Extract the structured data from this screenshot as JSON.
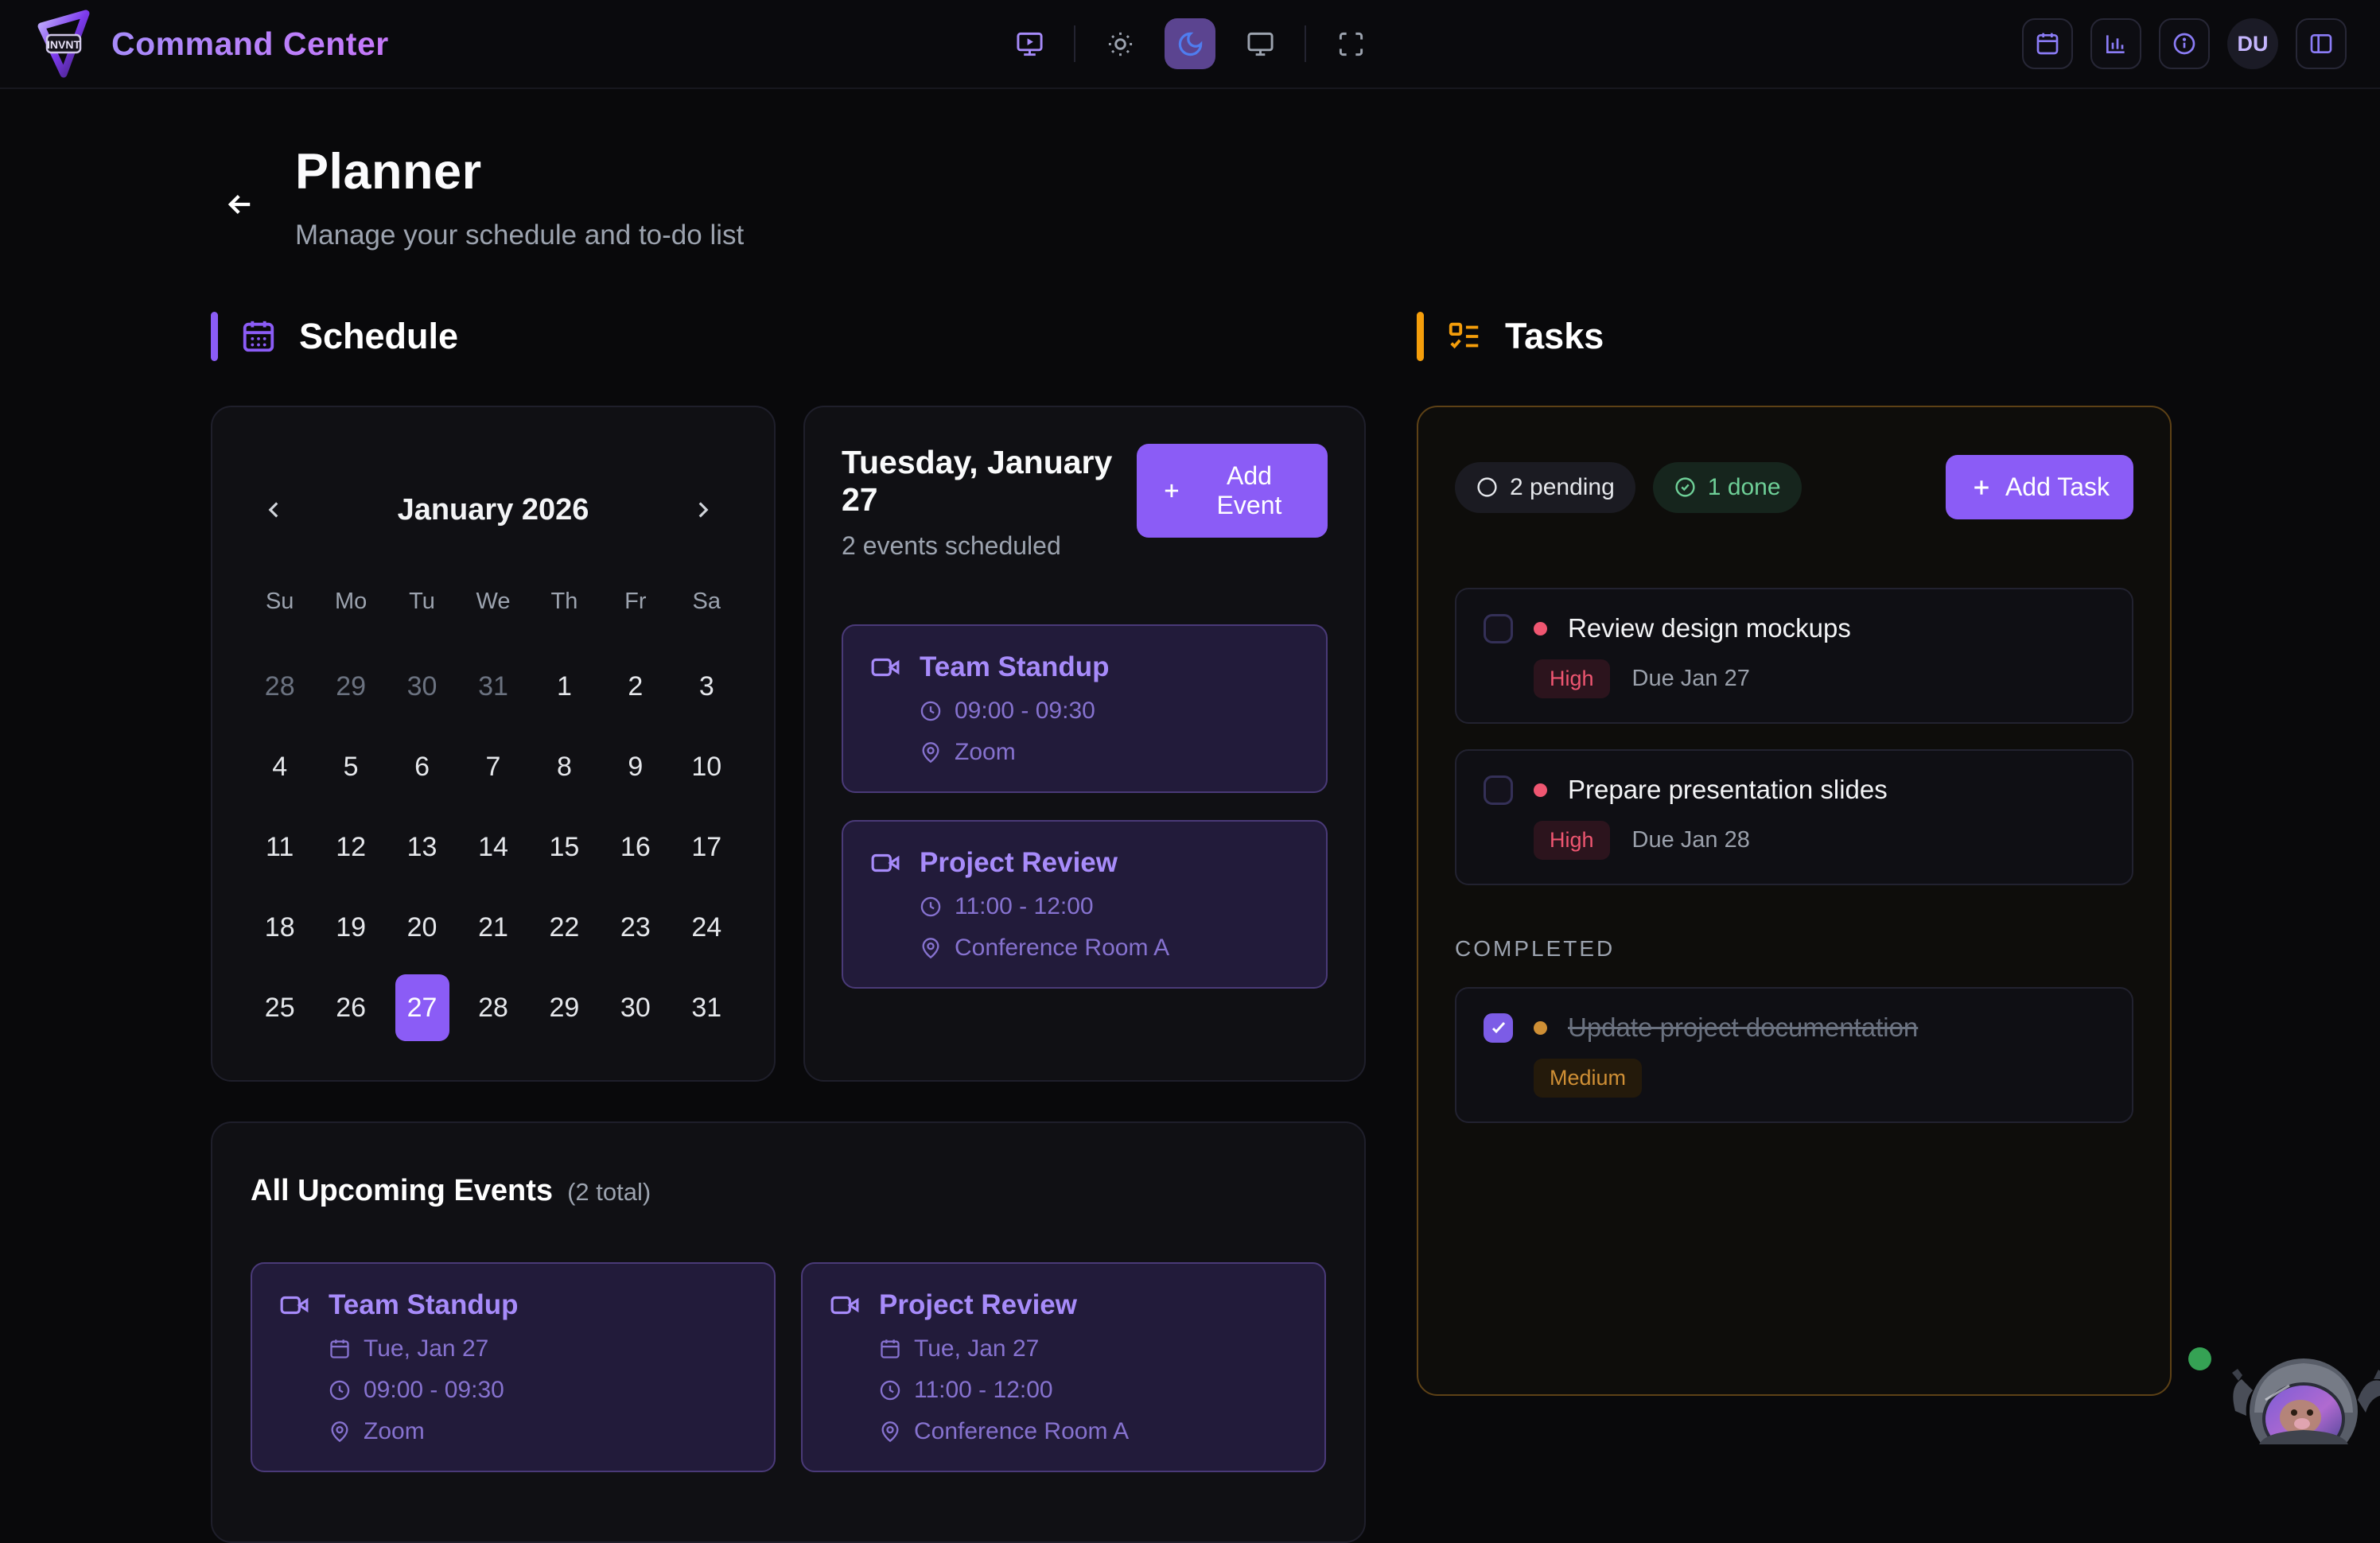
{
  "colors": {
    "accent": "#8b5cf6",
    "accent_light": "#a78bfa",
    "event_meta": "#8672cf",
    "orange": "#f59e0b",
    "green": "#6ecf97",
    "red": "#ef5671",
    "moon_bg": "#5b4490",
    "moon_icon": "#4f7df0"
  },
  "header": {
    "logo_text": "INVNT",
    "app_title": "Command Center",
    "avatar": "DU"
  },
  "page": {
    "title": "Planner",
    "subtitle": "Manage your schedule and to-do list"
  },
  "schedule": {
    "section_title": "Schedule",
    "calendar": {
      "month_label": "January 2026",
      "weekdays": [
        "Su",
        "Mo",
        "Tu",
        "We",
        "Th",
        "Fr",
        "Sa"
      ],
      "days": [
        {
          "d": "28",
          "muted": true
        },
        {
          "d": "29",
          "muted": true
        },
        {
          "d": "30",
          "muted": true
        },
        {
          "d": "31",
          "muted": true
        },
        {
          "d": "1"
        },
        {
          "d": "2"
        },
        {
          "d": "3"
        },
        {
          "d": "4"
        },
        {
          "d": "5"
        },
        {
          "d": "6"
        },
        {
          "d": "7"
        },
        {
          "d": "8"
        },
        {
          "d": "9"
        },
        {
          "d": "10"
        },
        {
          "d": "11"
        },
        {
          "d": "12"
        },
        {
          "d": "13"
        },
        {
          "d": "14"
        },
        {
          "d": "15"
        },
        {
          "d": "16"
        },
        {
          "d": "17"
        },
        {
          "d": "18"
        },
        {
          "d": "19"
        },
        {
          "d": "20"
        },
        {
          "d": "21"
        },
        {
          "d": "22"
        },
        {
          "d": "23"
        },
        {
          "d": "24"
        },
        {
          "d": "25"
        },
        {
          "d": "26"
        },
        {
          "d": "27",
          "selected": true
        },
        {
          "d": "28"
        },
        {
          "d": "29"
        },
        {
          "d": "30"
        },
        {
          "d": "31"
        }
      ]
    },
    "day_view": {
      "title": "Tuesday, January 27",
      "subtitle": "2 events scheduled",
      "add_event_label": "Add Event",
      "events": [
        {
          "name": "Team Standup",
          "time": "09:00 - 09:30",
          "location": "Zoom"
        },
        {
          "name": "Project Review",
          "time": "11:00 - 12:00",
          "location": "Conference Room A"
        }
      ]
    },
    "upcoming": {
      "title": "All Upcoming Events",
      "count_label": "(2 total)",
      "events": [
        {
          "name": "Team Standup",
          "date": "Tue, Jan 27",
          "time": "09:00 - 09:30",
          "location": "Zoom"
        },
        {
          "name": "Project Review",
          "date": "Tue, Jan 27",
          "time": "11:00 - 12:00",
          "location": "Conference Room A"
        }
      ]
    }
  },
  "tasks": {
    "section_title": "Tasks",
    "pending_label": "2 pending",
    "done_label": "1 done",
    "add_task_label": "Add Task",
    "pending": [
      {
        "title": "Review design mockups",
        "priority": "High",
        "due": "Due Jan 27"
      },
      {
        "title": "Prepare presentation slides",
        "priority": "High",
        "due": "Due Jan 28"
      }
    ],
    "completed_label": "COMPLETED",
    "completed": [
      {
        "title": "Update project documentation",
        "priority": "Medium"
      }
    ]
  }
}
